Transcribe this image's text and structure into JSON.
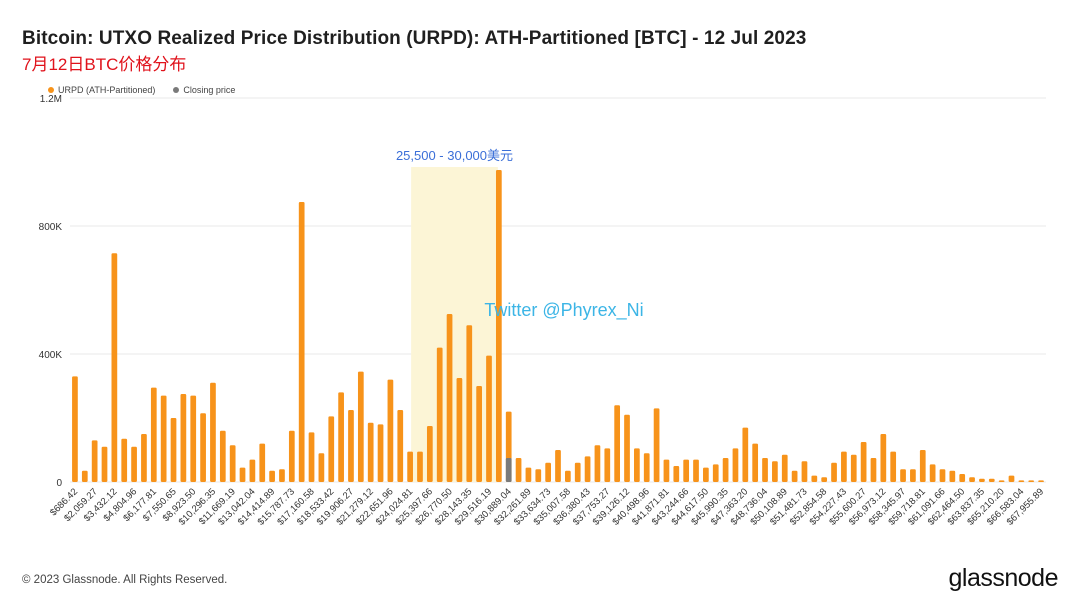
{
  "title": "Bitcoin: UTXO Realized Price Distribution (URPD): ATH-Partitioned [BTC] - 12 Jul 2023",
  "subtitle": "7月12日BTC价格分布",
  "legend": [
    {
      "label": "URPD (ATH-Partitioned)",
      "color": "#f7931a"
    },
    {
      "label": "Closing price",
      "color": "#7a7a7a"
    }
  ],
  "footer": "© 2023 Glassnode. All Rights Reserved.",
  "brand": "glassnode",
  "chart_data": {
    "type": "bar",
    "y_ticks": [
      {
        "value": 0,
        "label": "0"
      },
      {
        "value": 400000,
        "label": "400K"
      },
      {
        "value": 800000,
        "label": "800K"
      },
      {
        "value": 1200000,
        "label": "1.2M"
      }
    ],
    "ylim": [
      0,
      1200000
    ],
    "x_tick_labels": [
      "$686.42",
      "$2,059.27",
      "$3,432.12",
      "$4,804.96",
      "$6,177.81",
      "$7,550.65",
      "$8,923.50",
      "$10,296.35",
      "$11,669.19",
      "$13,042.04",
      "$14,414.89",
      "$15,787.73",
      "$17,160.58",
      "$18,533.42",
      "$19,906.27",
      "$21,279.12",
      "$22,651.96",
      "$24,024.81",
      "$25,397.66",
      "$26,770.50",
      "$28,143.35",
      "$29,516.19",
      "$30,889.04",
      "$32,261.89",
      "$33,634.73",
      "$35,007.58",
      "$36,380.43",
      "$37,753.27",
      "$39,126.12",
      "$40,498.96",
      "$41,871.81",
      "$43,244.66",
      "$44,617.50",
      "$45,990.35",
      "$47,363.20",
      "$48,736.04",
      "$50,108.89",
      "$51,481.73",
      "$52,854.58",
      "$54,227.43",
      "$55,600.27",
      "$56,973.12",
      "$58,345.97",
      "$59,718.81",
      "$61,091.66",
      "$62,464.50",
      "$63,837.35",
      "$65,210.20",
      "$66,583.04",
      "$67,955.89"
    ],
    "values": [
      330000,
      35000,
      130000,
      110000,
      715000,
      135000,
      110000,
      150000,
      295000,
      270000,
      200000,
      275000,
      270000,
      215000,
      310000,
      160000,
      115000,
      45000,
      70000,
      120000,
      35000,
      40000,
      160000,
      875000,
      155000,
      90000,
      205000,
      280000,
      225000,
      345000,
      185000,
      180000,
      320000,
      225000,
      95000,
      95000,
      175000,
      420000,
      525000,
      325000,
      490000,
      300000,
      395000,
      975000,
      220000,
      75000,
      45000,
      40000,
      60000,
      100000,
      35000,
      60000,
      80000,
      115000,
      105000,
      240000,
      210000,
      105000,
      90000,
      230000,
      70000,
      50000,
      70000,
      70000,
      45000,
      55000,
      75000,
      105000,
      170000,
      120000,
      75000,
      65000,
      85000,
      35000,
      65000,
      20000,
      15000,
      60000,
      95000,
      85000,
      125000,
      75000,
      150000,
      95000,
      40000,
      40000,
      100000,
      55000,
      40000,
      35000,
      25000,
      15000,
      10000,
      10000,
      5000,
      20000,
      5000,
      5000,
      5000
    ],
    "closing_price_bar": {
      "index": 44,
      "value": 75000
    },
    "highlight": {
      "from_index": 35,
      "to_index": 42,
      "label": "25,500 - 30,000美元"
    },
    "watermark": "Twitter @Phyrex_Ni"
  }
}
